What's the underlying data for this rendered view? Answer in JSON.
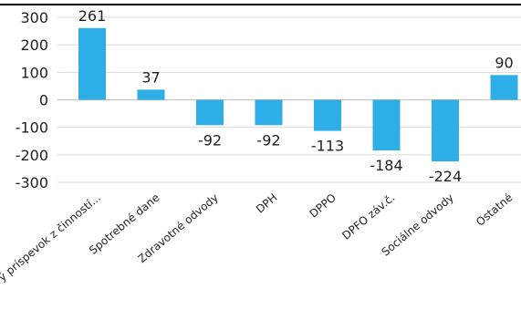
{
  "chart_data": {
    "type": "bar",
    "categories": [
      "Daňový príspevok z činností...",
      "Spotrebné dane",
      "Zdravotné odvody",
      "DPH",
      "DPPO",
      "DPFO záv.č.",
      "Sociálne odvody",
      "Ostatné"
    ],
    "values": [
      261,
      37,
      -92,
      -92,
      -113,
      -184,
      -224,
      90
    ],
    "data_labels": [
      "261",
      "37",
      "-92",
      "-92",
      "-113",
      "-184",
      "-224",
      "90"
    ],
    "yticks": [
      300,
      200,
      100,
      0,
      -100,
      -200,
      -300
    ],
    "ytick_labels": [
      "300",
      "200",
      "100",
      "0",
      "-100",
      "-200",
      "-300"
    ],
    "ylim": [
      -300,
      300
    ],
    "title": "",
    "xlabel": "",
    "ylabel": "",
    "grid": true,
    "bar_color": "#2eaee6"
  }
}
